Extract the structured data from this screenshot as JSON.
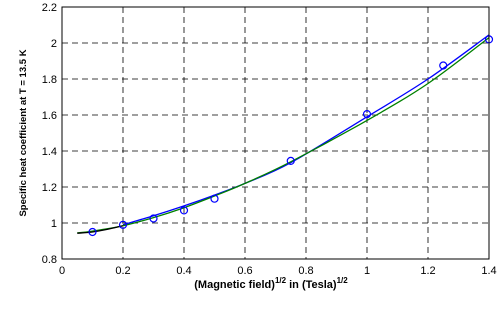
{
  "chart_data": {
    "type": "line",
    "xlabel_parts": [
      "(Magnetic field)",
      "1/2",
      " in (Tesla)",
      "1/2"
    ],
    "ylabel": "Specific heat coefficient at T = 13.5 K",
    "xlim": [
      0,
      1.4
    ],
    "ylim": [
      0.8,
      2.2
    ],
    "xticks": [
      0,
      0.2,
      0.4,
      0.6,
      0.8,
      1,
      1.2,
      1.4
    ],
    "xtick_labels": [
      "0",
      "0.2",
      "0.4",
      "0.6",
      "0.8",
      "1",
      "1.2",
      "1.4"
    ],
    "yticks": [
      0.8,
      1,
      1.2,
      1.4,
      1.6,
      1.8,
      2,
      2.2
    ],
    "ytick_labels": [
      "0.8",
      "1",
      "1.2",
      "1.4",
      "1.6",
      "1.8",
      "2",
      "2.2"
    ],
    "grid": true,
    "series": [
      {
        "style": "markers",
        "marker": "circle",
        "color": "#0000ff",
        "x": [
          0.1,
          0.2,
          0.3,
          0.4,
          0.5,
          0.75,
          1.0,
          1.25,
          1.4
        ],
        "y": [
          0.95,
          0.99,
          1.025,
          1.07,
          1.135,
          1.345,
          1.605,
          1.875,
          2.02
        ]
      },
      {
        "style": "line",
        "color": "#0000ff",
        "x": [
          0.2,
          0.3,
          0.4,
          0.5,
          0.6,
          0.75,
          1.0,
          1.2,
          1.4
        ],
        "y": [
          0.99,
          1.04,
          1.095,
          1.155,
          1.22,
          1.335,
          1.59,
          1.8,
          2.045
        ]
      },
      {
        "style": "line",
        "color": "#008000",
        "x": [
          0.05,
          0.1,
          0.2,
          0.3,
          0.4,
          0.5,
          0.6,
          0.75,
          1.0,
          1.2,
          1.4
        ],
        "y": [
          0.945,
          0.955,
          0.985,
          1.03,
          1.085,
          1.15,
          1.22,
          1.34,
          1.57,
          1.775,
          2.03
        ]
      },
      {
        "style": "line",
        "color": "#000000",
        "x": [
          0.05,
          0.1,
          0.15,
          0.2
        ],
        "y": [
          0.943,
          0.95,
          0.965,
          0.985
        ]
      }
    ]
  }
}
